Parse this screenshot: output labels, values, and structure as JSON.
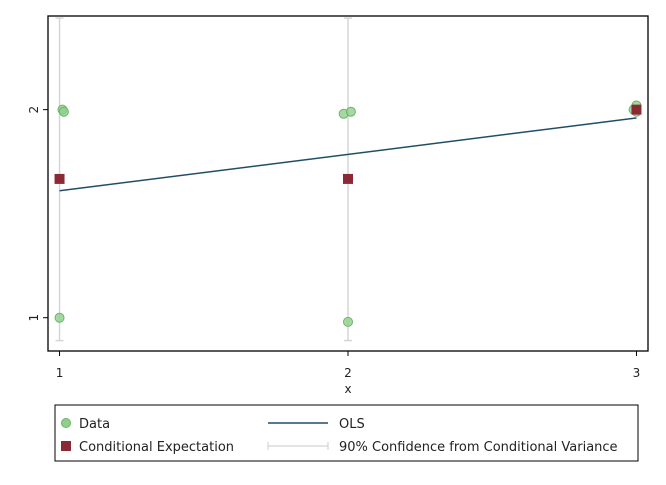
{
  "chart_data": {
    "type": "scatter",
    "xlabel": "x",
    "ylabel": "",
    "xlim": [
      0.96,
      3.04
    ],
    "ylim": [
      0.84,
      2.45
    ],
    "xticks": [
      1,
      2,
      3
    ],
    "yticks": [
      1,
      2
    ],
    "grid": false,
    "legend": "bottom",
    "series": [
      {
        "name": "Data",
        "kind": "scatter",
        "color": "#8fcf8a",
        "points": [
          {
            "x": 1.01,
            "y": 2.0
          },
          {
            "x": 1.015,
            "y": 1.99
          },
          {
            "x": 1.0,
            "y": 1.0
          },
          {
            "x": 1.985,
            "y": 1.98
          },
          {
            "x": 2.01,
            "y": 1.99
          },
          {
            "x": 2.0,
            "y": 0.98
          },
          {
            "x": 2.99,
            "y": 2.0
          },
          {
            "x": 3.0,
            "y": 2.02
          },
          {
            "x": 3.0,
            "y": 1.99
          }
        ]
      },
      {
        "name": "Conditional Expectation",
        "kind": "square",
        "color": "#8b2a35",
        "points": [
          {
            "x": 1,
            "y": 1.667
          },
          {
            "x": 2,
            "y": 1.667
          },
          {
            "x": 3,
            "y": 2.0
          }
        ]
      },
      {
        "name": "OLS",
        "kind": "line",
        "color": "#1f4e66",
        "points": [
          {
            "x": 1,
            "y": 1.61
          },
          {
            "x": 3,
            "y": 1.96
          }
        ]
      },
      {
        "name": "90% Confidence from Conditional Variance",
        "kind": "errorbar",
        "color": "#d4d4d4",
        "intervals": [
          {
            "x": 1,
            "low": 0.89,
            "high": 2.44
          },
          {
            "x": 2,
            "low": 0.89,
            "high": 2.44
          }
        ]
      }
    ]
  }
}
